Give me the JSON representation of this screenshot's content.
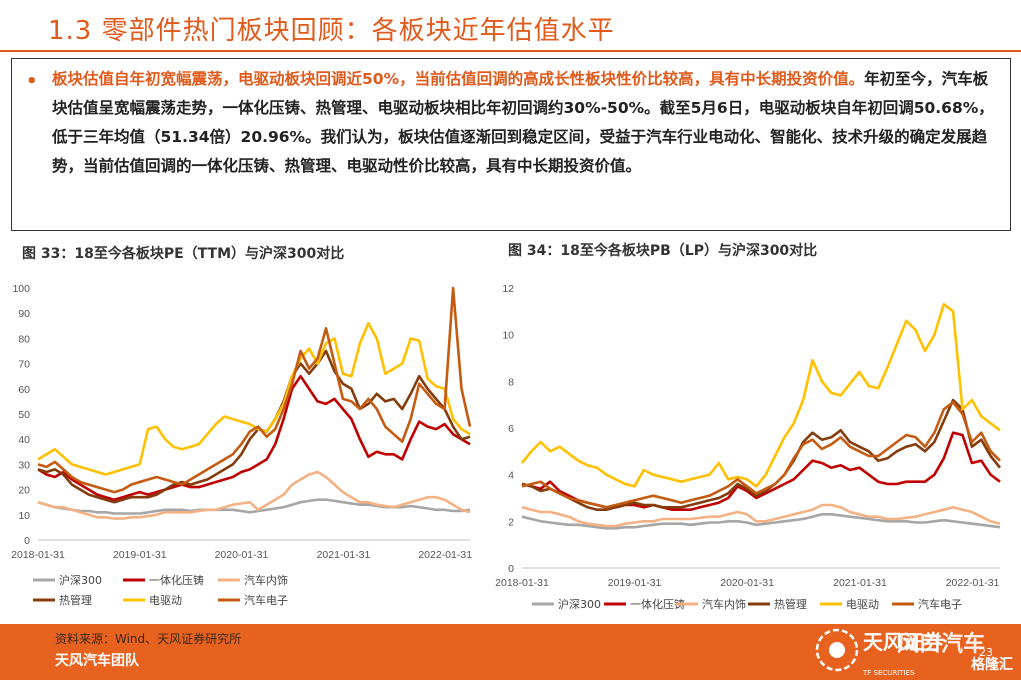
{
  "header": {
    "title": "1.3 零部件热门板块回顾：各板块近年估值水平"
  },
  "summary": {
    "bullet": "•",
    "highlight": "板块估值自年初宽幅震荡，电驱动板块回调近50%，当前估值回调的高成长性板块性价比较高，具有中长期投资价值。",
    "body": "年初至今，汽车板块估值呈宽幅震荡走势，一体化压铸、热管理、电驱动板块相比年初回调约30%-50%。截至5月6日，电驱动板块自年初回调50.68%，低于三年均值（51.34倍）20.96%。我们认为，板块估值逐渐回到稳定区间，受益于汽车行业电动化、智能化、技术升级的确定发展趋势，当前估值回调的一体化压铸、热管理、电驱动性价比较高，具有中长期投资价值。"
  },
  "colors": {
    "hs300": "#a6a6a6",
    "yitihua": "#c00000",
    "neishi": "#f4b183",
    "reguanli": "#843c0c",
    "diandong": "#ffc000",
    "dianzi": "#c55a11",
    "accent": "#e05a1b"
  },
  "chart_data": [
    {
      "type": "line",
      "caption": "图 33：18至今各板块PE（TTM）与沪深300对比",
      "ylim": [
        0,
        100
      ],
      "yticks": [
        "0",
        "10",
        "20",
        "30",
        "40",
        "50",
        "60",
        "70",
        "80",
        "90",
        "100"
      ],
      "xticks": [
        "2018-01-31",
        "2019-01-31",
        "2020-01-31",
        "2021-01-31",
        "2022-01-31"
      ],
      "xstart": "2018-01-31",
      "xend": "2022-04-30",
      "series": [
        {
          "name": "沪深300",
          "color_key": "hs300",
          "values": [
            15,
            14,
            13,
            12.5,
            12,
            11.5,
            11.5,
            11,
            11,
            10.5,
            10.5,
            10.5,
            10.5,
            11,
            11.5,
            12,
            12,
            12,
            11.5,
            12,
            12,
            12,
            12,
            12,
            11.5,
            11,
            11.5,
            12,
            12.5,
            13,
            14,
            15,
            15.5,
            16,
            16,
            15.5,
            15,
            14.5,
            14,
            14,
            13.5,
            13,
            13,
            13,
            13.5,
            13,
            12.5,
            12,
            12,
            11.5,
            11.5,
            12
          ]
        },
        {
          "name": "一体化压铸",
          "color_key": "yitihua",
          "values": [
            28,
            26,
            25,
            27,
            24,
            22,
            20,
            18,
            17,
            16,
            17,
            18,
            19,
            18,
            19,
            20,
            21,
            22,
            21,
            21,
            22,
            23,
            24,
            25,
            27,
            28,
            30,
            32,
            38,
            48,
            60,
            65,
            60,
            55,
            54,
            56,
            52,
            48,
            40,
            33,
            35,
            34,
            34,
            32,
            40,
            47,
            45,
            44,
            46,
            42,
            40,
            38
          ]
        },
        {
          "name": "汽车内饰",
          "color_key": "neishi",
          "values": [
            15,
            14,
            13,
            13,
            12,
            11,
            10,
            9,
            9,
            8.5,
            8.5,
            9,
            9,
            9.5,
            10,
            11,
            11,
            11,
            11,
            11.5,
            12,
            12,
            13,
            14,
            14.5,
            15,
            12,
            14,
            16,
            18,
            22,
            24,
            26,
            27,
            25,
            22,
            19,
            17,
            15,
            15,
            14,
            13.5,
            13,
            14,
            15,
            16,
            17,
            17,
            16,
            14,
            12,
            11
          ]
        },
        {
          "name": "热管理",
          "color_key": "reguanli",
          "values": [
            28,
            27,
            28,
            26,
            22,
            20,
            18,
            17,
            16,
            15,
            16,
            17,
            17,
            17,
            18,
            20,
            22,
            23,
            22,
            23,
            24,
            26,
            28,
            30,
            34,
            40,
            44,
            43,
            48,
            55,
            65,
            70,
            66,
            70,
            75,
            67,
            62,
            60,
            52,
            54,
            58,
            55,
            56,
            52,
            58,
            65,
            60,
            56,
            52,
            45,
            40,
            41
          ]
        },
        {
          "name": "电驱动",
          "color_key": "diandong",
          "values": [
            32,
            34,
            36,
            33,
            30,
            29,
            28,
            27,
            26,
            27,
            28,
            29,
            30,
            44,
            45,
            40,
            37,
            36,
            37,
            38,
            42,
            46,
            49,
            48,
            47,
            46,
            44,
            43,
            48,
            54,
            65,
            72,
            76,
            70,
            78,
            80,
            66,
            65,
            78,
            86,
            80,
            66,
            68,
            70,
            80,
            79,
            64,
            61,
            60,
            48,
            44,
            42
          ]
        },
        {
          "name": "汽车电子",
          "color_key": "dianzi",
          "values": [
            30,
            29,
            31,
            28,
            25,
            23,
            22,
            21,
            20,
            19,
            20,
            22,
            23,
            24,
            25,
            24,
            23,
            22,
            24,
            26,
            28,
            30,
            32,
            34,
            38,
            43,
            45,
            41,
            44,
            52,
            62,
            75,
            68,
            72,
            84,
            70,
            56,
            55,
            52,
            56,
            52,
            45,
            42,
            39,
            48,
            62,
            58,
            54,
            52,
            100,
            60,
            45
          ]
        }
      ]
    },
    {
      "type": "line",
      "caption": "图 34：18至今各板块PB（LP）与沪深300对比",
      "ylim": [
        0,
        12
      ],
      "yticks": [
        "0",
        "2",
        "4",
        "6",
        "8",
        "10",
        "12"
      ],
      "xticks": [
        "2018-01-31",
        "2019-01-31",
        "2020-01-31",
        "2021-01-31",
        "2022-01-31"
      ],
      "xstart": "2018-01-31",
      "xend": "2022-04-30",
      "series": [
        {
          "name": "沪深300",
          "color_key": "hs300",
          "values": [
            2.2,
            2.1,
            2.0,
            1.95,
            1.9,
            1.85,
            1.85,
            1.8,
            1.75,
            1.7,
            1.7,
            1.75,
            1.75,
            1.8,
            1.85,
            1.9,
            1.9,
            1.9,
            1.85,
            1.9,
            1.95,
            1.95,
            2.0,
            2.0,
            1.95,
            1.85,
            1.9,
            1.95,
            2.0,
            2.05,
            2.1,
            2.2,
            2.3,
            2.3,
            2.25,
            2.2,
            2.15,
            2.1,
            2.05,
            2.0,
            2.0,
            2.0,
            1.95,
            1.95,
            2.0,
            2.05,
            2.0,
            1.95,
            1.9,
            1.85,
            1.8,
            1.75
          ]
        },
        {
          "name": "一体化压铸",
          "color_key": "yitihua",
          "values": [
            3.6,
            3.5,
            3.4,
            3.7,
            3.3,
            3.1,
            2.9,
            2.8,
            2.7,
            2.6,
            2.6,
            2.7,
            2.7,
            2.6,
            2.7,
            2.6,
            2.5,
            2.5,
            2.5,
            2.6,
            2.7,
            2.8,
            3.0,
            3.5,
            3.3,
            3.0,
            3.2,
            3.4,
            3.6,
            3.8,
            4.2,
            4.6,
            4.5,
            4.3,
            4.4,
            4.2,
            4.3,
            4.0,
            3.7,
            3.6,
            3.6,
            3.7,
            3.7,
            3.7,
            4.0,
            4.7,
            5.8,
            5.7,
            4.5,
            4.6,
            4.0,
            3.7
          ]
        },
        {
          "name": "汽车内饰",
          "color_key": "neishi",
          "values": [
            2.6,
            2.5,
            2.4,
            2.4,
            2.3,
            2.2,
            2.0,
            1.9,
            1.85,
            1.8,
            1.8,
            1.9,
            1.95,
            2.0,
            2.0,
            2.1,
            2.1,
            2.1,
            2.1,
            2.15,
            2.2,
            2.2,
            2.3,
            2.4,
            2.3,
            2.0,
            2.0,
            2.1,
            2.2,
            2.3,
            2.4,
            2.5,
            2.7,
            2.7,
            2.6,
            2.4,
            2.3,
            2.2,
            2.2,
            2.1,
            2.1,
            2.15,
            2.2,
            2.3,
            2.4,
            2.5,
            2.6,
            2.5,
            2.4,
            2.2,
            2.0,
            1.9
          ]
        },
        {
          "name": "热管理",
          "color_key": "reguanli",
          "values": [
            3.6,
            3.5,
            3.3,
            3.4,
            3.2,
            3.0,
            2.8,
            2.6,
            2.5,
            2.5,
            2.6,
            2.7,
            2.8,
            2.7,
            2.7,
            2.6,
            2.6,
            2.6,
            2.7,
            2.8,
            2.9,
            3.0,
            3.2,
            3.6,
            3.4,
            3.1,
            3.3,
            3.6,
            4.0,
            4.6,
            5.4,
            5.8,
            5.5,
            5.6,
            5.9,
            5.4,
            5.2,
            5.0,
            4.6,
            4.7,
            5.0,
            5.2,
            5.3,
            5.0,
            5.4,
            6.3,
            7.2,
            6.8,
            5.2,
            5.5,
            4.8,
            4.3
          ]
        },
        {
          "name": "电驱动",
          "color_key": "diandong",
          "values": [
            4.5,
            5.0,
            5.4,
            5.0,
            5.2,
            4.9,
            4.6,
            4.4,
            4.3,
            4.0,
            3.8,
            3.6,
            3.5,
            4.2,
            4.0,
            3.9,
            3.8,
            3.7,
            3.8,
            3.9,
            4.0,
            4.5,
            3.8,
            3.9,
            3.8,
            3.5,
            4.0,
            4.8,
            5.6,
            6.2,
            7.2,
            8.9,
            8.0,
            7.5,
            7.4,
            7.9,
            8.4,
            7.8,
            7.7,
            8.6,
            9.6,
            10.6,
            10.2,
            9.3,
            10.0,
            11.3,
            11.0,
            6.8,
            7.2,
            6.5,
            6.2,
            5.9
          ]
        },
        {
          "name": "汽车电子",
          "color_key": "dianzi",
          "values": [
            3.5,
            3.6,
            3.7,
            3.4,
            3.2,
            3.0,
            2.9,
            2.8,
            2.7,
            2.6,
            2.7,
            2.8,
            2.9,
            3.0,
            3.1,
            3.0,
            2.9,
            2.8,
            2.9,
            3.0,
            3.1,
            3.3,
            3.5,
            3.8,
            3.5,
            3.2,
            3.4,
            3.6,
            4.0,
            4.7,
            5.3,
            5.5,
            5.1,
            5.3,
            5.6,
            5.2,
            5.0,
            4.8,
            4.8,
            5.1,
            5.4,
            5.7,
            5.6,
            5.2,
            5.8,
            6.8,
            7.1,
            6.6,
            5.4,
            5.8,
            5.0,
            4.6
          ]
        }
      ]
    }
  ],
  "footer": {
    "source": "资料来源：Wind、天风证券研究所",
    "team": "天风汽车团队",
    "brand_name": "天风证券",
    "brand_en": "TF SECURITIES",
    "page_no": "23",
    "watermark_1": "风口汽车",
    "watermark_2": "格隆汇"
  }
}
